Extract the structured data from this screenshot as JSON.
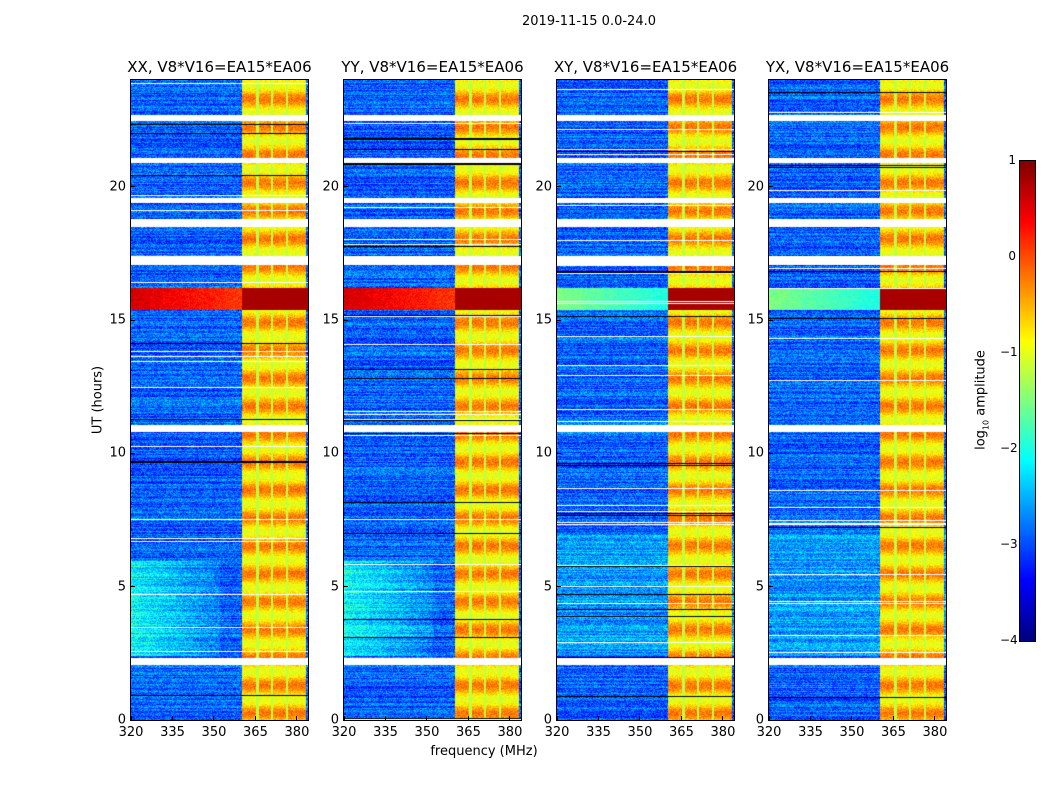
{
  "chart_data": {
    "type": "heatmap",
    "title": "2019-11-15 0.0-24.0",
    "xlabel": "frequency (MHz)",
    "ylabel": "UT (hours)",
    "xlim": [
      320,
      384
    ],
    "ylim": [
      0,
      24
    ],
    "xticks": [
      "320",
      "335",
      "350",
      "365",
      "380"
    ],
    "yticks": [
      "0",
      "5",
      "10",
      "15",
      "20"
    ],
    "panels": [
      {
        "title": "XX, V8*V16=EA15*EA06",
        "pol": "XX"
      },
      {
        "title": "YY, V8*V16=EA15*EA06",
        "pol": "YY"
      },
      {
        "title": "XY, V8*V16=EA15*EA06",
        "pol": "XY"
      },
      {
        "title": "YX, V8*V16=EA15*EA06",
        "pol": "YX"
      }
    ],
    "colorbar": {
      "label_main": "log",
      "label_sub": "10",
      "label_rest": " amplitude",
      "range": [
        -4,
        1
      ],
      "ticks": [
        "1",
        "0",
        "−1",
        "−2",
        "−3",
        "−4"
      ],
      "colormap": "jet"
    },
    "background_level": -2.9,
    "strong_band_mhz": [
      360,
      383
    ],
    "strong_band_level": -0.6,
    "band_gaps_mhz": [
      365.5,
      370.8,
      376.2
    ],
    "flagged_hours": [
      [
        22.5,
        22.7
      ],
      [
        20.9,
        21.1
      ],
      [
        19.4,
        19.6
      ],
      [
        18.5,
        18.8
      ],
      [
        17.1,
        17.4
      ],
      [
        10.8,
        11.1
      ],
      [
        2.1,
        2.35
      ]
    ],
    "rfi_hours": [
      15.4,
      16.2
    ],
    "rfi_level": 0.6
  }
}
